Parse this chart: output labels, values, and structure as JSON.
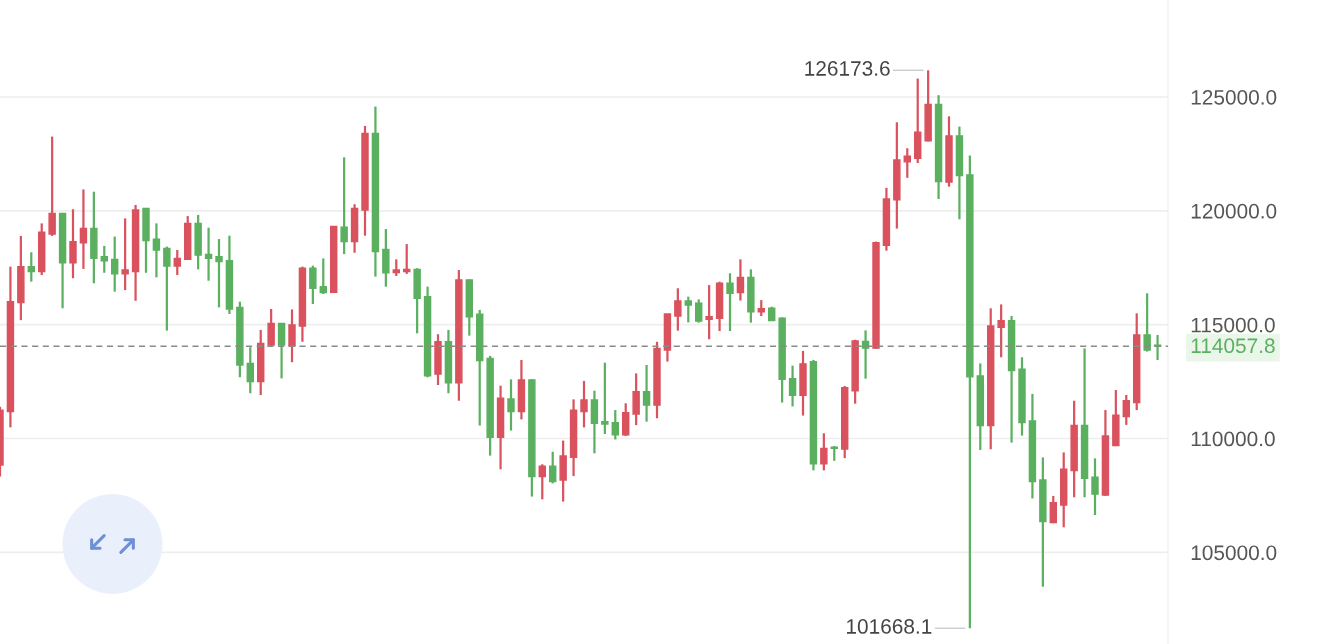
{
  "chart_data": {
    "type": "candlestick",
    "categories": [
      null,
      null,
      null,
      null,
      null,
      null,
      null,
      null,
      null,
      null,
      null,
      null,
      null,
      null,
      null,
      null,
      null,
      null,
      null,
      null,
      null,
      null,
      null,
      null,
      null,
      null,
      null,
      null,
      null,
      null,
      null,
      null,
      null,
      null,
      null,
      null,
      null,
      null,
      null,
      null,
      null,
      null,
      null,
      null,
      null,
      null,
      null,
      null,
      null,
      null,
      null,
      null,
      null,
      null,
      null,
      null,
      null,
      null,
      null,
      null,
      null,
      null,
      null,
      null,
      null,
      null,
      null,
      null,
      null,
      null,
      null,
      null,
      null,
      null,
      null,
      null,
      null,
      null,
      null,
      null,
      null,
      null,
      null,
      null,
      null,
      null,
      null,
      null,
      null,
      null,
      null,
      null,
      null,
      null,
      null,
      null,
      null,
      null,
      null,
      null,
      null,
      null,
      null,
      null,
      null,
      null,
      null,
      null,
      null,
      null,
      null,
      null
    ],
    "ohlc": [
      [
        108840,
        111400,
        108330,
        111250
      ],
      [
        111180,
        117550,
        110490,
        116010
      ],
      [
        115970,
        118900,
        115200,
        117550
      ],
      [
        117550,
        118180,
        116890,
        117330
      ],
      [
        117330,
        119450,
        117180,
        119060
      ],
      [
        118980,
        123260,
        118900,
        119890
      ],
      [
        119890,
        119890,
        115720,
        117720
      ],
      [
        117720,
        120070,
        117040,
        118650
      ],
      [
        118600,
        120940,
        117450,
        119230
      ],
      [
        119230,
        120840,
        116820,
        117910
      ],
      [
        117990,
        118460,
        117280,
        117810
      ],
      [
        117870,
        118870,
        116450,
        117230
      ],
      [
        117230,
        119670,
        116520,
        117400
      ],
      [
        117330,
        120260,
        116050,
        120040
      ],
      [
        120110,
        120110,
        117280,
        118690
      ],
      [
        118750,
        119450,
        117080,
        118280
      ],
      [
        118350,
        118430,
        114740,
        117580
      ],
      [
        117580,
        118280,
        117180,
        117910
      ],
      [
        117870,
        119770,
        117840,
        119450
      ],
      [
        119450,
        119820,
        117430,
        118060
      ],
      [
        118090,
        119260,
        116930,
        117910
      ],
      [
        117990,
        118760,
        115760,
        117770
      ],
      [
        117810,
        118910,
        115470,
        115690
      ],
      [
        115760,
        116010,
        112690,
        113230
      ],
      [
        113300,
        114010,
        111990,
        112500
      ],
      [
        112500,
        114770,
        111910,
        114180
      ],
      [
        114110,
        115690,
        114060,
        115060
      ],
      [
        115060,
        115060,
        112640,
        114110
      ],
      [
        114060,
        115670,
        113350,
        114990
      ],
      [
        114940,
        117550,
        114250,
        117480
      ],
      [
        117480,
        117590,
        115910,
        116600
      ],
      [
        116670,
        117910,
        116350,
        116410
      ],
      [
        116420,
        119310,
        116420,
        119310
      ],
      [
        119280,
        122350,
        118100,
        118650
      ],
      [
        118650,
        120290,
        118160,
        120110
      ],
      [
        120040,
        123730,
        118910,
        123400
      ],
      [
        123400,
        124580,
        117110,
        118210
      ],
      [
        118310,
        119200,
        116670,
        117280
      ],
      [
        117290,
        117870,
        117140,
        117400
      ],
      [
        117330,
        118540,
        117230,
        117430
      ],
      [
        117430,
        117480,
        114620,
        116160
      ],
      [
        116230,
        116670,
        112690,
        112760
      ],
      [
        112830,
        114580,
        112350,
        114250
      ],
      [
        114250,
        114770,
        111990,
        112450
      ],
      [
        112450,
        117400,
        111660,
        116960
      ],
      [
        116960,
        116990,
        114520,
        115350
      ],
      [
        115460,
        115650,
        110570,
        113420
      ],
      [
        113520,
        113630,
        109250,
        110050
      ],
      [
        110050,
        112320,
        108650,
        111770
      ],
      [
        111740,
        112600,
        110350,
        111180
      ],
      [
        111180,
        113450,
        110840,
        112570
      ],
      [
        112570,
        112600,
        107450,
        108330
      ],
      [
        108330,
        108870,
        107330,
        108790
      ],
      [
        108790,
        109420,
        108030,
        108110
      ],
      [
        108180,
        109910,
        107230,
        109230
      ],
      [
        109170,
        111720,
        108350,
        111250
      ],
      [
        111180,
        112530,
        110490,
        111690
      ],
      [
        111690,
        112100,
        109350,
        110670
      ],
      [
        110740,
        113330,
        110200,
        110640
      ],
      [
        110700,
        111250,
        109960,
        110160
      ],
      [
        110160,
        111550,
        110110,
        111140
      ],
      [
        111080,
        112860,
        110590,
        112060
      ],
      [
        112060,
        113230,
        110740,
        111470
      ],
      [
        111470,
        114250,
        110890,
        113960
      ],
      [
        113890,
        115470,
        113380,
        115470
      ],
      [
        115380,
        116600,
        114740,
        116040
      ],
      [
        116040,
        116230,
        115100,
        115860
      ],
      [
        115940,
        116110,
        115090,
        115160
      ],
      [
        115240,
        116740,
        114360,
        115350
      ],
      [
        115280,
        116890,
        114720,
        116820
      ],
      [
        116820,
        117260,
        114720,
        116380
      ],
      [
        116410,
        117870,
        116060,
        117080
      ],
      [
        117080,
        117430,
        115090,
        115570
      ],
      [
        115570,
        116080,
        115380,
        115700
      ],
      [
        115720,
        115790,
        115180,
        115180
      ],
      [
        115280,
        115320,
        111580,
        112600
      ],
      [
        112630,
        113200,
        111410,
        111900
      ],
      [
        111900,
        113850,
        111010,
        113280
      ],
      [
        113370,
        113450,
        108600,
        108890
      ],
      [
        108890,
        110230,
        108600,
        109570
      ],
      [
        109620,
        109670,
        109020,
        109570
      ],
      [
        109540,
        112310,
        109140,
        112230
      ],
      [
        112100,
        114340,
        111530,
        114290
      ],
      [
        114260,
        114750,
        112630,
        113970
      ],
      [
        113970,
        118650,
        113940,
        118600
      ],
      [
        118490,
        121010,
        118250,
        120520
      ],
      [
        120480,
        123890,
        119220,
        122230
      ],
      [
        122150,
        122750,
        121450,
        122400
      ],
      [
        122310,
        125810,
        122100,
        123450
      ],
      [
        123080,
        126173.6,
        123050,
        124670
      ],
      [
        124670,
        125080,
        120520,
        121290
      ],
      [
        121260,
        124150,
        121060,
        123290
      ],
      [
        123290,
        123700,
        119630,
        121550
      ],
      [
        121580,
        122430,
        101668.1,
        112710
      ],
      [
        112750,
        113300,
        109500,
        110570
      ],
      [
        110570,
        115720,
        109530,
        114940
      ],
      [
        114880,
        115890,
        113570,
        115180
      ],
      [
        115180,
        115380,
        109820,
        112980
      ],
      [
        113040,
        113570,
        110130,
        110700
      ],
      [
        110770,
        111960,
        107370,
        108110
      ],
      [
        108180,
        109170,
        103490,
        106350
      ],
      [
        106310,
        107480,
        106280,
        107180
      ],
      [
        107080,
        109390,
        106100,
        108650
      ],
      [
        108590,
        111660,
        107420,
        110570
      ],
      [
        110570,
        113960,
        107420,
        108250
      ],
      [
        108300,
        109130,
        106640,
        107560
      ],
      [
        107520,
        111250,
        107480,
        110110
      ],
      [
        109690,
        112130,
        109690,
        111030
      ],
      [
        110960,
        111910,
        110600,
        111660
      ],
      [
        111580,
        115500,
        111250,
        114550
      ],
      [
        114550,
        116380,
        113820,
        113890
      ],
      [
        114100,
        114550,
        113450,
        114057.8
      ]
    ],
    "colors": [
      "#d9525e",
      "#d9525e",
      "#d9525e",
      "#5ab05f",
      "#d9525e",
      "#d9525e",
      "#5ab05f",
      "#d9525e",
      "#d9525e",
      "#5ab05f",
      "#5ab05f",
      "#5ab05f",
      "#d9525e",
      "#d9525e",
      "#5ab05f",
      "#5ab05f",
      "#5ab05f",
      "#d9525e",
      "#d9525e",
      "#5ab05f",
      "#5ab05f",
      "#5ab05f",
      "#5ab05f",
      "#5ab05f",
      "#5ab05f",
      "#d9525e",
      "#d9525e",
      "#5ab05f",
      "#d9525e",
      "#d9525e",
      "#5ab05f",
      "#5ab05f",
      "#d9525e",
      "#5ab05f",
      "#d9525e",
      "#d9525e",
      "#5ab05f",
      "#5ab05f",
      "#d9525e",
      "#d9525e",
      "#5ab05f",
      "#5ab05f",
      "#d9525e",
      "#5ab05f",
      "#d9525e",
      "#5ab05f",
      "#5ab05f",
      "#5ab05f",
      "#d9525e",
      "#5ab05f",
      "#d9525e",
      "#5ab05f",
      "#d9525e",
      "#5ab05f",
      "#d9525e",
      "#d9525e",
      "#d9525e",
      "#5ab05f",
      "#5ab05f",
      "#5ab05f",
      "#d9525e",
      "#d9525e",
      "#5ab05f",
      "#d9525e",
      "#d9525e",
      "#d9525e",
      "#5ab05f",
      "#5ab05f",
      "#d9525e",
      "#d9525e",
      "#5ab05f",
      "#d9525e",
      "#5ab05f",
      "#d9525e",
      "#5ab05f",
      "#5ab05f",
      "#5ab05f",
      "#d9525e",
      "#5ab05f",
      "#d9525e",
      "#5ab05f",
      "#d9525e",
      "#d9525e",
      "#5ab05f",
      "#d9525e",
      "#d9525e",
      "#d9525e",
      "#d9525e",
      "#d9525e",
      "#d9525e",
      "#5ab05f",
      "#d9525e",
      "#5ab05f",
      "#5ab05f",
      "#5ab05f",
      "#d9525e",
      "#d9525e",
      "#5ab05f",
      "#5ab05f",
      "#5ab05f",
      "#5ab05f",
      "#d9525e",
      "#d9525e",
      "#d9525e",
      "#5ab05f",
      "#5ab05f",
      "#d9525e",
      "#d9525e",
      "#d9525e",
      "#d9525e",
      "#5ab05f",
      "#5ab05f"
    ],
    "ylim": [
      100976,
      129260
    ],
    "yticks": [
      {
        "value": 105000,
        "label": "105000.0"
      },
      {
        "value": 110000,
        "label": "110000.0"
      },
      {
        "value": 115000,
        "label": "115000.0"
      },
      {
        "value": 120000,
        "label": "120000.0"
      },
      {
        "value": 125000,
        "label": "125000.0"
      }
    ],
    "grid": "y",
    "tick_labels": "y",
    "ref_lines": [
      {
        "axis": "y",
        "value": 114057.8,
        "label": "114057.8",
        "color": "#8a8a8a",
        "line_style": "dashed"
      }
    ],
    "annotations": [
      "126173.6",
      "101668.1"
    ]
  }
}
